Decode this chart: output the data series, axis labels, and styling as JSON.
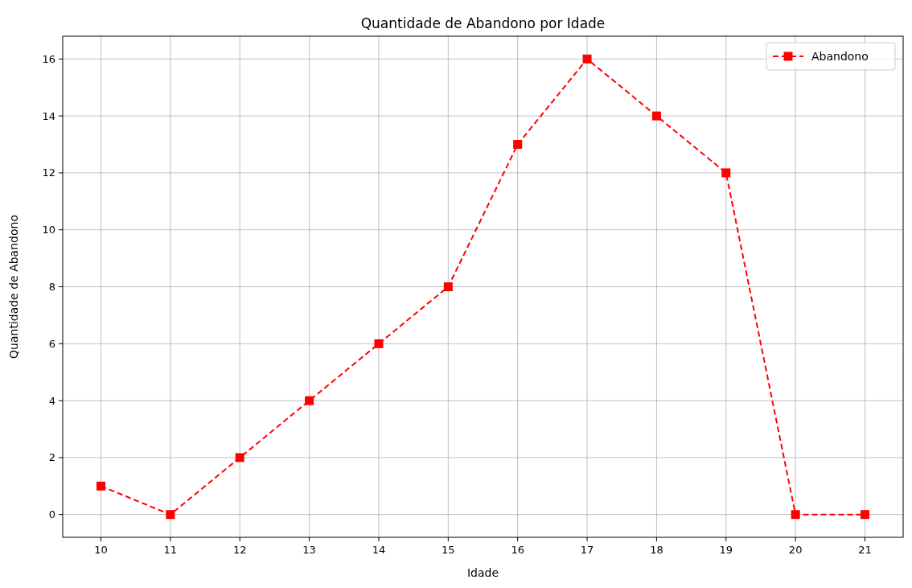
{
  "chart_data": {
    "type": "line",
    "title": "Quantidade de Abandono por Idade",
    "xlabel": "Idade",
    "ylabel": "Quantidade de Abandono",
    "x": [
      10,
      11,
      12,
      13,
      14,
      15,
      16,
      17,
      18,
      19,
      20,
      21
    ],
    "series": [
      {
        "name": "Abandono",
        "color": "#ff0000",
        "values": [
          1,
          0,
          2,
          4,
          6,
          8,
          13,
          16,
          14,
          12,
          0,
          0
        ]
      }
    ],
    "xlim": [
      9.45,
      21.55
    ],
    "ylim": [
      -0.8,
      16.8
    ],
    "xticks": [
      10,
      11,
      12,
      13,
      14,
      15,
      16,
      17,
      18,
      19,
      20,
      21
    ],
    "yticks": [
      0,
      2,
      4,
      6,
      8,
      10,
      12,
      14,
      16
    ],
    "grid": true,
    "legend": "top right",
    "marker": "square",
    "line_style": "dashed"
  }
}
